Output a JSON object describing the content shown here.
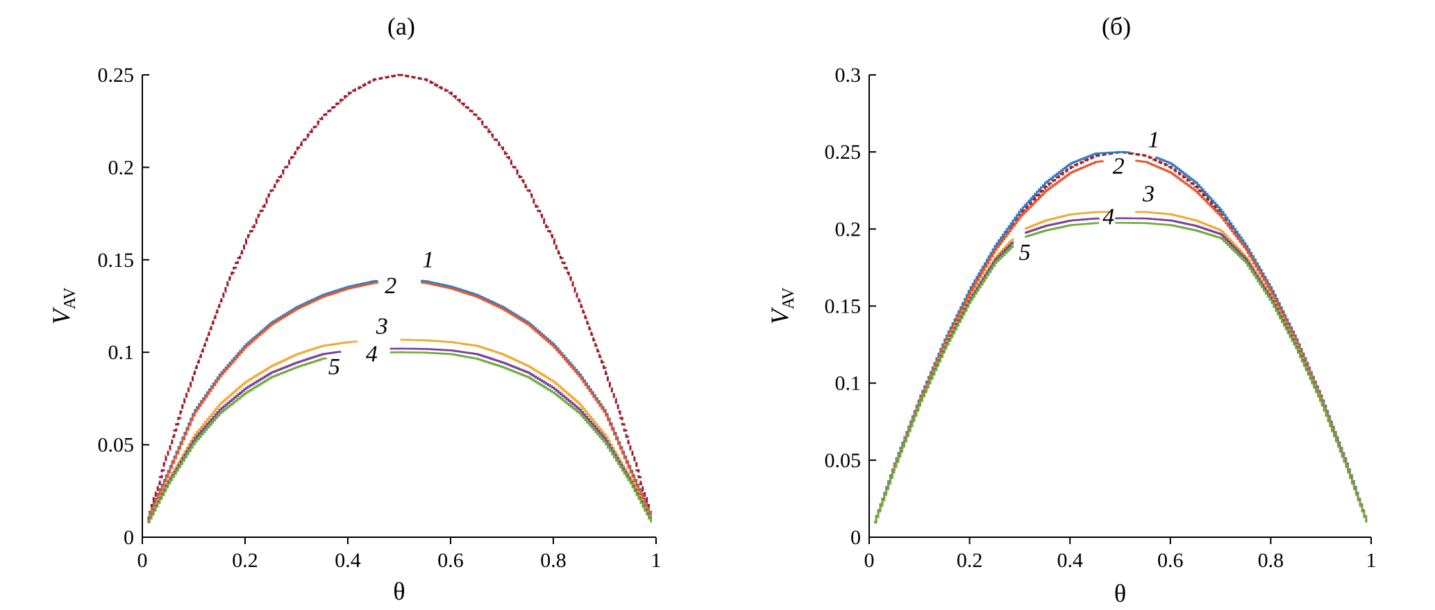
{
  "chart_data": [
    {
      "type": "line",
      "title": "(a)",
      "xlabel": "θ",
      "ylabel": "V",
      "ylabel_sub": "AV",
      "xlim": [
        0,
        1
      ],
      "ylim": [
        0,
        0.25
      ],
      "xticks": [
        0,
        0.2,
        0.4,
        0.6,
        0.8,
        1
      ],
      "xtick_labels": [
        "0",
        "0.2",
        "0.4",
        "0.6",
        "0.8",
        "1"
      ],
      "yticks": [
        0,
        0.05,
        0.1,
        0.15,
        0.2,
        0.25
      ],
      "ytick_labels": [
        "0",
        "0.05",
        "0.1",
        "0.15",
        "0.2",
        "0.25"
      ],
      "grid": false,
      "series": [
        {
          "name": "",
          "color": "#9b1b2a",
          "dashed": true,
          "x": [
            0.01,
            0.05,
            0.1,
            0.15,
            0.2,
            0.25,
            0.3,
            0.35,
            0.4,
            0.45,
            0.5,
            0.55,
            0.6,
            0.65,
            0.7,
            0.75,
            0.8,
            0.85,
            0.9,
            0.95,
            0.99
          ],
          "y": [
            0.0099,
            0.0475,
            0.09,
            0.1275,
            0.16,
            0.1875,
            0.21,
            0.2275,
            0.24,
            0.2475,
            0.25,
            0.2475,
            0.24,
            0.2275,
            0.21,
            0.1875,
            0.16,
            0.1275,
            0.09,
            0.0475,
            0.0099
          ]
        },
        {
          "name": "1",
          "color": "#2e7bc4",
          "gap": [
            0.46,
            0.54
          ],
          "x": [
            0.01,
            0.05,
            0.1,
            0.15,
            0.2,
            0.25,
            0.3,
            0.35,
            0.4,
            0.45,
            0.5,
            0.55,
            0.6,
            0.65,
            0.7,
            0.75,
            0.8,
            0.85,
            0.9,
            0.95,
            0.99
          ],
          "y": [
            0.011,
            0.036,
            0.068,
            0.088,
            0.104,
            0.116,
            0.1245,
            0.131,
            0.1355,
            0.1385,
            0.1395,
            0.1385,
            0.1355,
            0.131,
            0.1245,
            0.116,
            0.104,
            0.088,
            0.068,
            0.036,
            0.011
          ]
        },
        {
          "name": "2",
          "color": "#e4572e",
          "gap": [
            0.46,
            0.54
          ],
          "x": [
            0.01,
            0.05,
            0.1,
            0.15,
            0.2,
            0.25,
            0.3,
            0.35,
            0.4,
            0.45,
            0.5,
            0.55,
            0.6,
            0.65,
            0.7,
            0.75,
            0.8,
            0.85,
            0.9,
            0.95,
            0.99
          ],
          "y": [
            0.0105,
            0.035,
            0.067,
            0.087,
            0.103,
            0.115,
            0.1235,
            0.13,
            0.1345,
            0.1375,
            0.1385,
            0.1375,
            0.1345,
            0.13,
            0.1235,
            0.115,
            0.103,
            0.087,
            0.067,
            0.035,
            0.0105
          ]
        },
        {
          "name": "3",
          "color": "#f0a830",
          "gap": [
            0.42,
            0.5
          ],
          "x": [
            0.01,
            0.05,
            0.1,
            0.15,
            0.2,
            0.25,
            0.3,
            0.35,
            0.4,
            0.45,
            0.5,
            0.55,
            0.6,
            0.65,
            0.7,
            0.75,
            0.8,
            0.85,
            0.9,
            0.95,
            0.99
          ],
          "y": [
            0.009,
            0.031,
            0.055,
            0.072,
            0.084,
            0.0925,
            0.099,
            0.1035,
            0.1055,
            0.1065,
            0.1068,
            0.1065,
            0.1055,
            0.1035,
            0.099,
            0.0925,
            0.084,
            0.072,
            0.055,
            0.031,
            0.009
          ]
        },
        {
          "name": "4",
          "color": "#7a3f98",
          "gap": [
            0.39,
            0.48
          ],
          "x": [
            0.01,
            0.05,
            0.1,
            0.15,
            0.2,
            0.25,
            0.3,
            0.35,
            0.4,
            0.45,
            0.5,
            0.55,
            0.6,
            0.65,
            0.7,
            0.75,
            0.8,
            0.85,
            0.9,
            0.95,
            0.99
          ],
          "y": [
            0.0085,
            0.03,
            0.053,
            0.069,
            0.0805,
            0.089,
            0.0945,
            0.099,
            0.101,
            0.1018,
            0.102,
            0.1018,
            0.101,
            0.099,
            0.0945,
            0.089,
            0.0805,
            0.069,
            0.053,
            0.03,
            0.0085
          ]
        },
        {
          "name": "5",
          "color": "#6cab3c",
          "gap": [
            0.36,
            0.48
          ],
          "x": [
            0.01,
            0.05,
            0.1,
            0.15,
            0.2,
            0.25,
            0.3,
            0.35,
            0.4,
            0.45,
            0.5,
            0.55,
            0.6,
            0.65,
            0.7,
            0.75,
            0.8,
            0.85,
            0.9,
            0.95,
            0.99
          ],
          "y": [
            0.008,
            0.029,
            0.051,
            0.067,
            0.078,
            0.0865,
            0.092,
            0.0965,
            0.099,
            0.0998,
            0.1,
            0.0998,
            0.099,
            0.0965,
            0.092,
            0.0865,
            0.078,
            0.067,
            0.051,
            0.029,
            0.008
          ]
        }
      ],
      "labels": [
        {
          "text": "1",
          "x": 0.545,
          "y": 0.146
        },
        {
          "text": "2",
          "x": 0.472,
          "y": 0.132
        },
        {
          "text": "3",
          "x": 0.455,
          "y": 0.11
        },
        {
          "text": "4",
          "x": 0.435,
          "y": 0.095
        },
        {
          "text": "5",
          "x": 0.362,
          "y": 0.088
        }
      ]
    },
    {
      "type": "line",
      "title": "(б)",
      "xlabel": "θ",
      "ylabel": "V",
      "ylabel_sub": "AV",
      "xlim": [
        0,
        1
      ],
      "ylim": [
        0,
        0.3
      ],
      "xticks": [
        0,
        0.2,
        0.4,
        0.6,
        0.8,
        1
      ],
      "xtick_labels": [
        "0",
        "0.2",
        "0.4",
        "0.6",
        "0.8",
        "1"
      ],
      "yticks": [
        0,
        0.05,
        0.1,
        0.15,
        0.2,
        0.25,
        0.3
      ],
      "ytick_labels": [
        "0",
        "0.05",
        "0.1",
        "0.15",
        "0.2",
        "0.25",
        "0.3"
      ],
      "grid": false,
      "series": [
        {
          "name": "",
          "color": "#9b1b2a",
          "dashed": true,
          "x": [
            0.01,
            0.05,
            0.1,
            0.15,
            0.2,
            0.25,
            0.3,
            0.35,
            0.4,
            0.45,
            0.5,
            0.55,
            0.6,
            0.65,
            0.7,
            0.75,
            0.8,
            0.85,
            0.9,
            0.95,
            0.99
          ],
          "y": [
            0.0099,
            0.0475,
            0.09,
            0.1275,
            0.16,
            0.1875,
            0.21,
            0.2275,
            0.24,
            0.2475,
            0.25,
            0.2475,
            0.24,
            0.2275,
            0.21,
            0.1875,
            0.16,
            0.1275,
            0.09,
            0.0475,
            0.0099
          ]
        },
        {
          "name": "1",
          "color": "#2e7bc4",
          "gap": [
            0.52,
            0.57
          ],
          "x": [
            0.01,
            0.05,
            0.1,
            0.15,
            0.2,
            0.25,
            0.3,
            0.35,
            0.4,
            0.45,
            0.5,
            0.55,
            0.6,
            0.65,
            0.7,
            0.75,
            0.8,
            0.85,
            0.9,
            0.95,
            0.99
          ],
          "y": [
            0.0099,
            0.0478,
            0.0905,
            0.1283,
            0.1612,
            0.189,
            0.212,
            0.23,
            0.2425,
            0.249,
            0.25,
            0.249,
            0.2425,
            0.23,
            0.212,
            0.189,
            0.1612,
            0.1283,
            0.0905,
            0.0478,
            0.0099
          ]
        },
        {
          "name": "2",
          "color": "#e4572e",
          "gap": [
            0.47,
            0.53
          ],
          "x": [
            0.01,
            0.05,
            0.1,
            0.15,
            0.2,
            0.25,
            0.3,
            0.35,
            0.4,
            0.45,
            0.5,
            0.55,
            0.6,
            0.65,
            0.7,
            0.75,
            0.8,
            0.85,
            0.9,
            0.95,
            0.99
          ],
          "y": [
            0.0098,
            0.047,
            0.0895,
            0.1268,
            0.159,
            0.1865,
            0.208,
            0.2245,
            0.2365,
            0.2435,
            0.2455,
            0.2435,
            0.2365,
            0.2245,
            0.208,
            0.1865,
            0.159,
            0.1268,
            0.0895,
            0.047,
            0.0098
          ]
        },
        {
          "name": "3",
          "color": "#f0a830",
          "gap": [
            0.29,
            0.31,
            0.49,
            0.53
          ],
          "x": [
            0.01,
            0.05,
            0.1,
            0.15,
            0.2,
            0.25,
            0.3,
            0.35,
            0.4,
            0.45,
            0.5,
            0.55,
            0.6,
            0.65,
            0.7,
            0.75,
            0.8,
            0.85,
            0.9,
            0.95,
            0.99
          ],
          "y": [
            0.0097,
            0.0465,
            0.088,
            0.1245,
            0.1555,
            0.1815,
            0.199,
            0.2055,
            0.2095,
            0.211,
            0.2112,
            0.211,
            0.2095,
            0.2055,
            0.199,
            0.1815,
            0.1555,
            0.1245,
            0.088,
            0.0465,
            0.0097
          ]
        },
        {
          "name": "4",
          "color": "#7a3f98",
          "gap": [
            0.29,
            0.31,
            0.46,
            0.49
          ],
          "x": [
            0.01,
            0.05,
            0.1,
            0.15,
            0.2,
            0.25,
            0.3,
            0.35,
            0.4,
            0.45,
            0.5,
            0.55,
            0.6,
            0.65,
            0.7,
            0.75,
            0.8,
            0.85,
            0.9,
            0.95,
            0.99
          ],
          "y": [
            0.0096,
            0.046,
            0.0875,
            0.1235,
            0.1545,
            0.18,
            0.1965,
            0.202,
            0.2055,
            0.2068,
            0.207,
            0.2068,
            0.2055,
            0.202,
            0.1965,
            0.18,
            0.1545,
            0.1235,
            0.0875,
            0.046,
            0.0096
          ]
        },
        {
          "name": "5",
          "color": "#6cab3c",
          "gap": [
            0.29,
            0.31,
            0.46,
            0.49
          ],
          "x": [
            0.01,
            0.05,
            0.1,
            0.15,
            0.2,
            0.25,
            0.3,
            0.35,
            0.4,
            0.45,
            0.5,
            0.55,
            0.6,
            0.65,
            0.7,
            0.75,
            0.8,
            0.85,
            0.9,
            0.95,
            0.99
          ],
          "y": [
            0.0095,
            0.0455,
            0.087,
            0.1225,
            0.153,
            0.178,
            0.194,
            0.199,
            0.2025,
            0.2038,
            0.204,
            0.2038,
            0.2025,
            0.199,
            0.194,
            0.178,
            0.153,
            0.1225,
            0.087,
            0.0455,
            0.0095
          ]
        }
      ],
      "labels": [
        {
          "text": "1",
          "x": 0.555,
          "y": 0.253
        },
        {
          "text": "2",
          "x": 0.485,
          "y": 0.236
        },
        {
          "text": "3",
          "x": 0.545,
          "y": 0.218
        },
        {
          "text": "4",
          "x": 0.465,
          "y": 0.203
        },
        {
          "text": "5",
          "x": 0.298,
          "y": 0.18
        }
      ]
    }
  ]
}
